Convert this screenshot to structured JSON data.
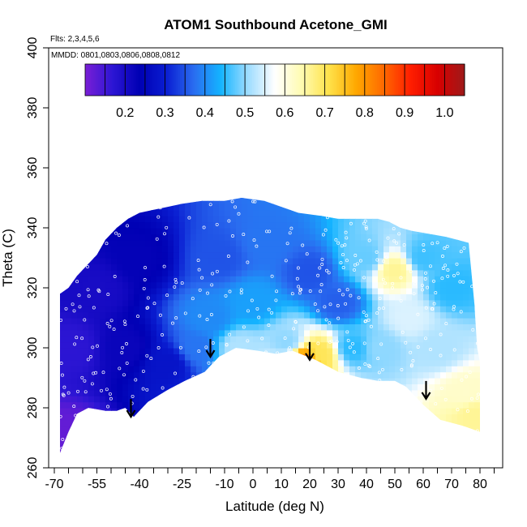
{
  "chart_data": {
    "type": "heatmap",
    "title": "ATOM1 Southbound Acetone_GMI",
    "annotations": {
      "flights": "Flts: 2,3,4,5,6",
      "dates": "MMDD: 0801,0803,0806,0808,0812"
    },
    "xlabel": "Latitude (deg N)",
    "ylabel": "Theta (C)",
    "xlim": [
      -72,
      88
    ],
    "ylim": [
      260,
      400
    ],
    "x_ticks": [
      -70,
      -55,
      -40,
      -25,
      -10,
      0,
      10,
      20,
      30,
      40,
      50,
      60,
      70,
      80
    ],
    "x_tick_labels": [
      "-70",
      "-55",
      "-40",
      "-25",
      "-10",
      "0",
      "10",
      "20",
      "30",
      "40",
      "50",
      "60",
      "70",
      "80"
    ],
    "y_ticks": [
      260,
      280,
      300,
      320,
      340,
      360,
      380,
      400
    ],
    "y_tick_labels": [
      "260",
      "280",
      "300",
      "320",
      "340",
      "360",
      "380",
      "400"
    ],
    "colorbar": {
      "range": [
        0.1,
        1.05
      ],
      "ticks": [
        0.2,
        0.3,
        0.4,
        0.5,
        0.6,
        0.7,
        0.8,
        0.9,
        1.0
      ],
      "tick_labels": [
        "0.2",
        "0.3",
        "0.4",
        "0.5",
        "0.6",
        "0.7",
        "0.8",
        "0.9",
        "1.0"
      ],
      "colors": [
        "#7a1fd6",
        "#2d16d4",
        "#0000b4",
        "#0a1ed2",
        "#2a6cf0",
        "#14b4ff",
        "#9ddcff",
        "#ffffff",
        "#fffbb0",
        "#ffe24a",
        "#ffa800",
        "#ff6a00",
        "#ff1e00",
        "#d80000",
        "#9e1a1a"
      ]
    },
    "boundary_top": [
      [
        -68,
        318
      ],
      [
        -65,
        320
      ],
      [
        -62,
        324
      ],
      [
        -58,
        328
      ],
      [
        -55,
        331
      ],
      [
        -52,
        336
      ],
      [
        -48,
        340
      ],
      [
        -44,
        343
      ],
      [
        -40,
        345
      ],
      [
        -35,
        346
      ],
      [
        -30,
        347
      ],
      [
        -25,
        348
      ],
      [
        -18,
        349
      ],
      [
        -10,
        349
      ],
      [
        -4,
        350
      ],
      [
        4,
        349
      ],
      [
        10,
        347
      ],
      [
        16,
        345
      ],
      [
        24,
        344
      ],
      [
        30,
        343
      ],
      [
        38,
        343
      ],
      [
        44,
        343
      ],
      [
        48,
        342
      ],
      [
        52,
        340
      ],
      [
        56,
        339
      ],
      [
        62,
        338
      ],
      [
        68,
        337
      ],
      [
        72,
        336
      ],
      [
        76,
        335
      ],
      [
        78,
        315
      ],
      [
        79,
        300
      ],
      [
        80,
        295
      ]
    ],
    "boundary_bottom": [
      [
        80,
        272
      ],
      [
        74,
        274
      ],
      [
        66,
        276
      ],
      [
        60,
        281
      ],
      [
        54,
        287
      ],
      [
        50,
        289
      ],
      [
        44,
        289
      ],
      [
        38,
        290
      ],
      [
        30,
        292
      ],
      [
        22,
        296
      ],
      [
        14,
        299
      ],
      [
        8,
        298
      ],
      [
        2,
        299
      ],
      [
        -6,
        300
      ],
      [
        -12,
        297
      ],
      [
        -17,
        292
      ],
      [
        -24,
        289
      ],
      [
        -30,
        286
      ],
      [
        -37,
        282
      ],
      [
        -42,
        277
      ],
      [
        -45,
        280
      ],
      [
        -48,
        279
      ],
      [
        -52,
        279
      ],
      [
        -58,
        280
      ],
      [
        -62,
        278
      ],
      [
        -65,
        272
      ],
      [
        -68,
        265
      ]
    ],
    "field_anchors": [
      {
        "lat": -66,
        "theta": 270,
        "value": 0.12
      },
      {
        "lat": -64,
        "theta": 300,
        "value": 0.17
      },
      {
        "lat": -55,
        "theta": 320,
        "value": 0.2
      },
      {
        "lat": -45,
        "theta": 300,
        "value": 0.22
      },
      {
        "lat": -40,
        "theta": 330,
        "value": 0.23
      },
      {
        "lat": -30,
        "theta": 295,
        "value": 0.28
      },
      {
        "lat": -20,
        "theta": 300,
        "value": 0.38
      },
      {
        "lat": -15,
        "theta": 310,
        "value": 0.4
      },
      {
        "lat": -12,
        "theta": 330,
        "value": 0.35
      },
      {
        "lat": -5,
        "theta": 300,
        "value": 0.52
      },
      {
        "lat": 0,
        "theta": 315,
        "value": 0.42
      },
      {
        "lat": 5,
        "theta": 335,
        "value": 0.38
      },
      {
        "lat": 12,
        "theta": 302,
        "value": 0.5
      },
      {
        "lat": 18,
        "theta": 296,
        "value": 0.82
      },
      {
        "lat": 24,
        "theta": 298,
        "value": 0.7
      },
      {
        "lat": 20,
        "theta": 325,
        "value": 0.35
      },
      {
        "lat": 30,
        "theta": 315,
        "value": 0.36
      },
      {
        "lat": 35,
        "theta": 300,
        "value": 0.45
      },
      {
        "lat": 40,
        "theta": 330,
        "value": 0.48
      },
      {
        "lat": 45,
        "theta": 300,
        "value": 0.5
      },
      {
        "lat": 50,
        "theta": 326,
        "value": 0.66
      },
      {
        "lat": 55,
        "theta": 310,
        "value": 0.55
      },
      {
        "lat": 60,
        "theta": 330,
        "value": 0.46
      },
      {
        "lat": 65,
        "theta": 300,
        "value": 0.52
      },
      {
        "lat": 70,
        "theta": 320,
        "value": 0.45
      },
      {
        "lat": 75,
        "theta": 285,
        "value": 0.62
      },
      {
        "lat": 78,
        "theta": 278,
        "value": 0.66
      }
    ],
    "arrows": [
      {
        "lat": -43,
        "theta_tip": 277
      },
      {
        "lat": -15,
        "theta_tip": 297
      },
      {
        "lat": 20,
        "theta_tip": 296
      },
      {
        "lat": 61,
        "theta_tip": 283
      }
    ],
    "grid": false,
    "legend_placement": "top"
  }
}
